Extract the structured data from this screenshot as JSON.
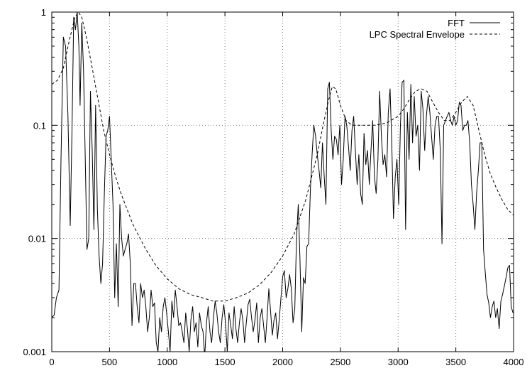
{
  "chart_data": {
    "type": "line",
    "x_ticks": [
      0,
      500,
      1000,
      1500,
      2000,
      2500,
      3000,
      3500,
      4000
    ],
    "x_tick_labels": [
      "0",
      "500",
      "1000",
      "1500",
      "2000",
      "2500",
      "3000",
      "3500",
      "4000"
    ],
    "y_ticks": [
      0.001,
      0.01,
      0.1,
      1
    ],
    "y_tick_labels": [
      "0.001",
      "0.01",
      "0.1",
      "1"
    ],
    "xlim": [
      0,
      4000
    ],
    "ylim": [
      0.001,
      1
    ],
    "y_scale": "log",
    "grid": true,
    "legend_position": "top-right",
    "series": [
      {
        "name": "FFT",
        "style": "solid",
        "color": "#000000",
        "x": [
          0,
          20,
          40,
          62,
          80,
          100,
          120,
          140,
          160,
          175,
          190,
          205,
          220,
          235,
          245,
          260,
          275,
          290,
          305,
          320,
          335,
          350,
          365,
          380,
          395,
          410,
          425,
          440,
          455,
          470,
          485,
          500,
          515,
          530,
          545,
          560,
          575,
          590,
          605,
          620,
          635,
          650,
          665,
          680,
          695,
          710,
          725,
          740,
          755,
          770,
          785,
          800,
          815,
          830,
          845,
          860,
          875,
          890,
          905,
          920,
          935,
          950,
          965,
          980,
          995,
          1010,
          1025,
          1040,
          1055,
          1070,
          1085,
          1100,
          1115,
          1130,
          1145,
          1160,
          1175,
          1190,
          1205,
          1220,
          1235,
          1250,
          1265,
          1280,
          1295,
          1310,
          1325,
          1340,
          1355,
          1370,
          1385,
          1400,
          1415,
          1430,
          1445,
          1460,
          1475,
          1490,
          1505,
          1520,
          1535,
          1550,
          1565,
          1580,
          1595,
          1610,
          1625,
          1640,
          1655,
          1670,
          1685,
          1700,
          1715,
          1730,
          1745,
          1760,
          1775,
          1790,
          1805,
          1820,
          1835,
          1850,
          1865,
          1880,
          1895,
          1910,
          1925,
          1940,
          1955,
          1970,
          1985,
          2000,
          2015,
          2030,
          2045,
          2060,
          2075,
          2090,
          2105,
          2120,
          2135,
          2150,
          2165,
          2180,
          2195,
          2210,
          2225,
          2240,
          2255,
          2270,
          2285,
          2300,
          2315,
          2330,
          2345,
          2360,
          2375,
          2390,
          2405,
          2420,
          2435,
          2450,
          2465,
          2480,
          2495,
          2510,
          2525,
          2540,
          2555,
          2570,
          2585,
          2600,
          2615,
          2630,
          2645,
          2660,
          2675,
          2690,
          2705,
          2720,
          2735,
          2750,
          2765,
          2780,
          2795,
          2810,
          2825,
          2840,
          2855,
          2870,
          2885,
          2900,
          2915,
          2930,
          2945,
          2960,
          2975,
          2990,
          3005,
          3020,
          3035,
          3050,
          3065,
          3080,
          3095,
          3110,
          3125,
          3140,
          3155,
          3170,
          3185,
          3200,
          3215,
          3230,
          3245,
          3260,
          3275,
          3290,
          3305,
          3320,
          3335,
          3350,
          3365,
          3380,
          3395,
          3410,
          3425,
          3440,
          3455,
          3470,
          3485,
          3500,
          3515,
          3530,
          3545,
          3560,
          3575,
          3590,
          3605,
          3620,
          3635,
          3650,
          3665,
          3680,
          3695,
          3710,
          3725,
          3740,
          3755,
          3770,
          3785,
          3800,
          3815,
          3830,
          3845,
          3860,
          3875,
          3890,
          3905,
          3920,
          3935,
          3950,
          3965,
          3980,
          3995
        ],
        "values": [
          0.002,
          0.0021,
          0.003,
          0.0035,
          0.05,
          0.6,
          0.5,
          0.12,
          0.013,
          0.09,
          0.9,
          0.7,
          1.0,
          0.5,
          0.15,
          0.8,
          0.3,
          0.05,
          0.008,
          0.01,
          0.2,
          0.06,
          0.012,
          0.15,
          0.018,
          0.007,
          0.004,
          0.006,
          0.025,
          0.08,
          0.09,
          0.12,
          0.05,
          0.02,
          0.003,
          0.009,
          0.0025,
          0.02,
          0.01,
          0.007,
          0.008,
          0.009,
          0.011,
          0.006,
          0.0017,
          0.004,
          0.004,
          0.0025,
          0.0018,
          0.004,
          0.003,
          0.0035,
          0.0025,
          0.0015,
          0.002,
          0.0035,
          0.0025,
          0.0027,
          0.0012,
          0.001,
          0.002,
          0.0015,
          0.0025,
          0.003,
          0.0022,
          0.0015,
          0.001,
          0.0028,
          0.002,
          0.0035,
          0.0025,
          0.0017,
          0.0018,
          0.0015,
          0.0012,
          0.0022,
          0.0016,
          0.001,
          0.0019,
          0.0025,
          0.0015,
          0.0018,
          0.0011,
          0.0022,
          0.0017,
          0.0015,
          0.0009,
          0.0018,
          0.0025,
          0.0015,
          0.0012,
          0.002,
          0.0028,
          0.0022,
          0.0015,
          0.0012,
          0.002,
          0.0026,
          0.0018,
          0.001,
          0.0022,
          0.0017,
          0.0013,
          0.0025,
          0.0016,
          0.0012,
          0.0018,
          0.0024,
          0.0019,
          0.0012,
          0.0018,
          0.0026,
          0.0029,
          0.002,
          0.0015,
          0.0019,
          0.0027,
          0.0012,
          0.002,
          0.0024,
          0.0017,
          0.0012,
          0.002,
          0.0036,
          0.0023,
          0.0014,
          0.0019,
          0.0022,
          0.0013,
          0.0019,
          0.003,
          0.0046,
          0.0052,
          0.003,
          0.0036,
          0.0048,
          0.0036,
          0.0018,
          0.0024,
          0.01,
          0.02,
          0.0065,
          0.0015,
          0.0045,
          0.004,
          0.0085,
          0.009,
          0.027,
          0.055,
          0.1,
          0.08,
          0.055,
          0.04,
          0.028,
          0.07,
          0.035,
          0.02,
          0.21,
          0.24,
          0.09,
          0.05,
          0.08,
          0.075,
          0.055,
          0.1,
          0.03,
          0.05,
          0.12,
          0.1,
          0.065,
          0.04,
          0.09,
          0.12,
          0.06,
          0.03,
          0.055,
          0.025,
          0.02,
          0.085,
          0.045,
          0.06,
          0.03,
          0.06,
          0.11,
          0.035,
          0.025,
          0.05,
          0.2,
          0.08,
          0.045,
          0.055,
          0.035,
          0.13,
          0.21,
          0.07,
          0.015,
          0.035,
          0.05,
          0.02,
          0.1,
          0.24,
          0.25,
          0.012,
          0.13,
          0.05,
          0.23,
          0.07,
          0.18,
          0.08,
          0.1,
          0.04,
          0.2,
          0.14,
          0.06,
          0.12,
          0.18,
          0.13,
          0.08,
          0.05,
          0.1,
          0.12,
          0.12,
          0.06,
          0.009,
          0.1,
          0.11,
          0.12,
          0.13,
          0.11,
          0.1,
          0.12,
          0.1,
          0.11,
          0.16,
          0.15,
          0.09,
          0.1,
          0.1,
          0.11,
          0.07,
          0.03,
          0.02,
          0.012,
          0.025,
          0.04,
          0.07,
          0.07,
          0.008,
          0.005,
          0.0032,
          0.0027,
          0.002,
          0.0025,
          0.0028,
          0.002,
          0.0024,
          0.0016,
          0.0028,
          0.0032,
          0.0038,
          0.0045,
          0.0055,
          0.0058,
          0.0025,
          0.0022
        ]
      },
      {
        "name": "LPC Spectral Envelope",
        "style": "dashed",
        "color": "#000000",
        "x": [
          0,
          50,
          100,
          150,
          200,
          230,
          260,
          300,
          350,
          400,
          450,
          500,
          550,
          600,
          700,
          800,
          900,
          1000,
          1100,
          1200,
          1300,
          1400,
          1500,
          1600,
          1700,
          1800,
          1900,
          2000,
          2100,
          2200,
          2300,
          2350,
          2400,
          2430,
          2460,
          2500,
          2550,
          2600,
          2700,
          2800,
          2900,
          3000,
          3050,
          3100,
          3150,
          3200,
          3250,
          3300,
          3350,
          3400,
          3450,
          3500,
          3550,
          3600,
          3650,
          3700,
          3750,
          3800,
          3850,
          3900,
          3950,
          4000
        ],
        "values": [
          0.23,
          0.25,
          0.32,
          0.55,
          0.9,
          1.0,
          0.9,
          0.6,
          0.32,
          0.17,
          0.09,
          0.055,
          0.036,
          0.025,
          0.0135,
          0.0085,
          0.0058,
          0.0044,
          0.0036,
          0.0032,
          0.003,
          0.0028,
          0.0028,
          0.003,
          0.0033,
          0.0039,
          0.005,
          0.007,
          0.011,
          0.022,
          0.055,
          0.1,
          0.17,
          0.22,
          0.21,
          0.15,
          0.11,
          0.1,
          0.1,
          0.1,
          0.105,
          0.12,
          0.14,
          0.17,
          0.2,
          0.21,
          0.2,
          0.16,
          0.13,
          0.11,
          0.11,
          0.13,
          0.16,
          0.18,
          0.15,
          0.09,
          0.055,
          0.037,
          0.028,
          0.022,
          0.018,
          0.016
        ]
      }
    ]
  }
}
